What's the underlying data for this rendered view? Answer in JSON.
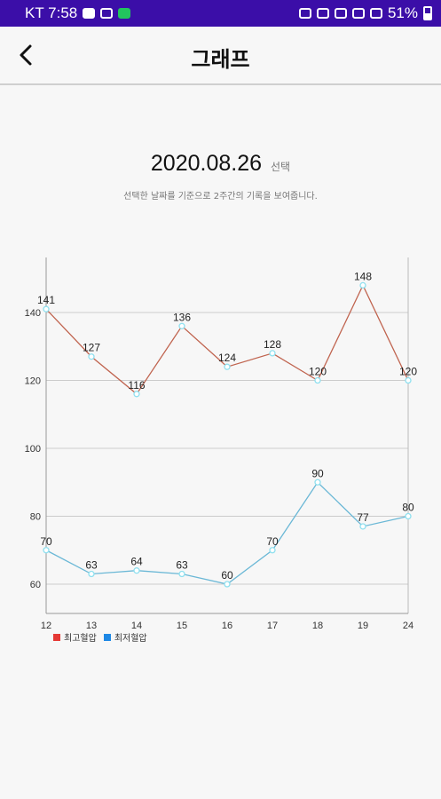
{
  "status_bar": {
    "carrier_time": "KT 7:58",
    "battery": "51%"
  },
  "header": {
    "title": "그래프"
  },
  "date": {
    "value": "2020.08.26",
    "select_label": "선택"
  },
  "description": "선택한 날짜를 기준으로 2주간의 기록을 보여줍니다.",
  "colors": {
    "high": "#d9534f",
    "low": "#29a3e6"
  },
  "chart_data": {
    "type": "line",
    "categories": [
      "12",
      "13",
      "14",
      "15",
      "16",
      "17",
      "18",
      "19",
      "24"
    ],
    "series": [
      {
        "name": "최고혈압",
        "values": [
          141,
          127,
          116,
          136,
          124,
          128,
          120,
          148,
          120
        ],
        "color": "#c0644f"
      },
      {
        "name": "최저혈압",
        "values": [
          70,
          63,
          64,
          63,
          60,
          70,
          90,
          77,
          80
        ],
        "color": "#6bb8d6"
      }
    ],
    "y_ticks": [
      60,
      80,
      100,
      120,
      140
    ],
    "ylim": [
      51,
      157
    ],
    "grid": true,
    "legend_position": "bottom-left"
  }
}
